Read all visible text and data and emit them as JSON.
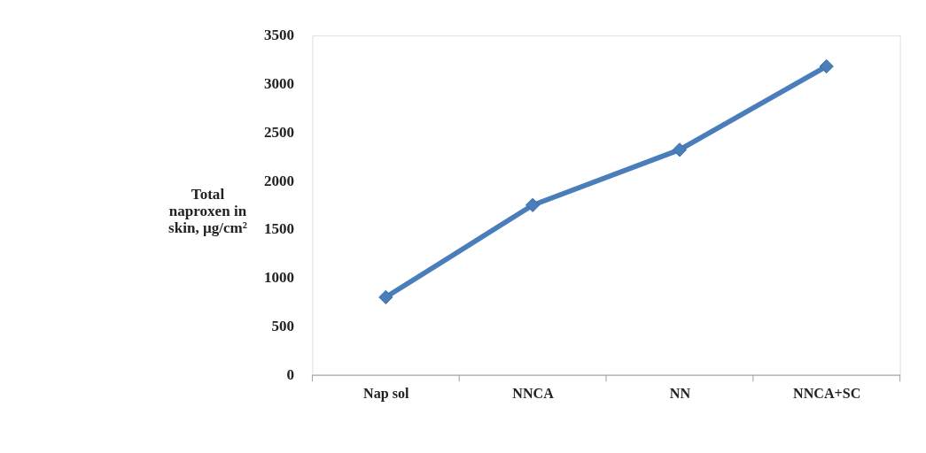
{
  "chart_data": {
    "type": "line",
    "ylabel": "Total naproxen in skin, µg/cm²",
    "categories": [
      "Nap sol",
      "NNCA",
      "NN",
      "NNCA+SC"
    ],
    "series": [
      {
        "color": "#4a7ebb",
        "values": [
          800,
          1750,
          2320,
          3180
        ]
      }
    ],
    "ylim": [
      0,
      3500
    ],
    "yticks": [
      0,
      500,
      1000,
      1500,
      2000,
      2500,
      3000,
      3500
    ],
    "grid": false,
    "legend": false,
    "marker": "diamond",
    "line_style": "solid"
  }
}
